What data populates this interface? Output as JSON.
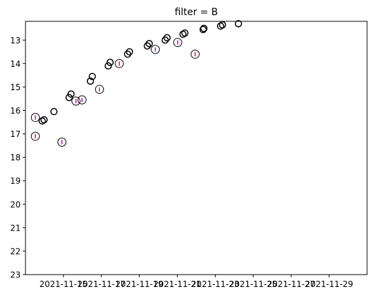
{
  "chart_data": {
    "type": "scatter",
    "title": "filter = B",
    "xlabel": "",
    "ylabel": "",
    "x_axis": {
      "kind": "date",
      "range": [
        "2021-11-13",
        "2021-12-01"
      ],
      "ticks": [
        "2021-11-15",
        "2021-11-17",
        "2021-11-19",
        "2021-11-21",
        "2021-11-23",
        "2021-11-25",
        "2021-11-27",
        "2021-11-29"
      ],
      "tick_labels": [
        "2021-11-15",
        "2021-11-17",
        "2021-11-19",
        "2021-11-21",
        "2021-11-23",
        "2021-11-25",
        "2021-11-27",
        "2021-11-29"
      ]
    },
    "y_axis": {
      "inverted": true,
      "range": [
        23,
        12.2
      ],
      "ticks": [
        13,
        14,
        15,
        16,
        17,
        18,
        19,
        20,
        21,
        22,
        23
      ],
      "tick_labels": [
        "13",
        "14",
        "15",
        "16",
        "17",
        "18",
        "19",
        "20",
        "21",
        "22",
        "23"
      ]
    },
    "grid": false,
    "legend": "none",
    "series": [
      {
        "marker": "open-circle",
        "color": "#000000",
        "points": [
          {
            "x": "2021-11-13T21:07",
            "y": 16.45
          },
          {
            "x": "2021-11-13T23:31",
            "y": 16.4
          },
          {
            "x": "2021-11-14T12:00",
            "y": 16.05
          },
          {
            "x": "2021-11-15T07:12",
            "y": 15.45
          },
          {
            "x": "2021-11-15T09:36",
            "y": 15.3
          },
          {
            "x": "2021-11-16T10:05",
            "y": 14.75
          },
          {
            "x": "2021-11-16T12:29",
            "y": 14.55
          },
          {
            "x": "2021-11-17T08:38",
            "y": 14.1
          },
          {
            "x": "2021-11-17T11:02",
            "y": 13.95
          },
          {
            "x": "2021-11-18T09:07",
            "y": 13.6
          },
          {
            "x": "2021-11-18T11:31",
            "y": 13.5
          },
          {
            "x": "2021-11-19T10:05",
            "y": 13.25
          },
          {
            "x": "2021-11-19T12:29",
            "y": 13.15
          },
          {
            "x": "2021-11-20T08:38",
            "y": 13.0
          },
          {
            "x": "2021-11-20T11:02",
            "y": 12.9
          },
          {
            "x": "2021-11-21T07:12",
            "y": 12.75
          },
          {
            "x": "2021-11-21T09:36",
            "y": 12.7
          },
          {
            "x": "2021-11-22T08:38",
            "y": 12.55
          },
          {
            "x": "2021-11-22T09:36",
            "y": 12.5
          },
          {
            "x": "2021-11-23T06:43",
            "y": 12.4
          },
          {
            "x": "2021-11-23T09:07",
            "y": 12.35
          },
          {
            "x": "2021-11-24T05:17",
            "y": 12.3
          }
        ]
      },
      {
        "marker": "open-circle-with-errorbar",
        "color": "#000000",
        "errorbar_color": "#d4009e",
        "points": [
          {
            "x": "2021-11-13T12:29",
            "y": 16.3,
            "yerr": 0.08
          },
          {
            "x": "2021-11-13T12:29",
            "y": 17.1,
            "yerr": 0.08
          },
          {
            "x": "2021-11-14T22:05",
            "y": 17.35,
            "yerr": 0.08
          },
          {
            "x": "2021-11-15T15:50",
            "y": 15.6,
            "yerr": 0.08
          },
          {
            "x": "2021-11-15T23:31",
            "y": 15.55,
            "yerr": 0.08
          },
          {
            "x": "2021-11-16T21:36",
            "y": 15.1,
            "yerr": 0.08
          },
          {
            "x": "2021-11-17T22:34",
            "y": 14.0,
            "yerr": 0.08
          },
          {
            "x": "2021-11-19T20:10",
            "y": 13.4,
            "yerr": 0.08
          },
          {
            "x": "2021-11-21T00:29",
            "y": 13.1,
            "yerr": 0.05
          },
          {
            "x": "2021-11-21T22:34",
            "y": 13.6,
            "yerr": 0.08
          }
        ]
      }
    ]
  }
}
